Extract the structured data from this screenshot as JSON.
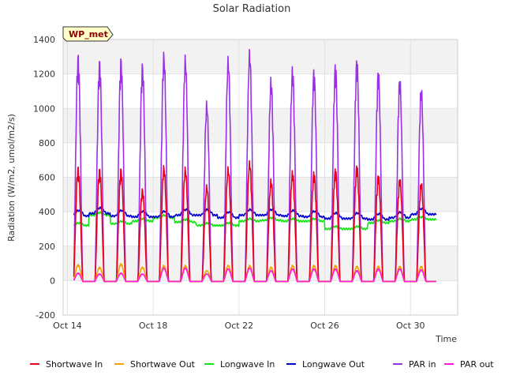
{
  "chart_data": {
    "type": "line",
    "title": "Solar Radiation",
    "station_label": "WP_met",
    "xlabel": "Time",
    "ylabel": "Radiation (W/m2, umol/m2/s)",
    "ylim": [
      -200,
      1400
    ],
    "yticks": [
      -200,
      0,
      200,
      400,
      600,
      800,
      1000,
      1200,
      1400
    ],
    "xlim": [
      13.8,
      32.2
    ],
    "xticks": [
      {
        "day": 14,
        "label": "Oct 14"
      },
      {
        "day": 18,
        "label": "Oct 18"
      },
      {
        "day": 22,
        "label": "Oct 22"
      },
      {
        "day": 26,
        "label": "Oct 26"
      },
      {
        "day": 30,
        "label": "Oct 30"
      }
    ],
    "data_start_day": 14.3,
    "data_end_day": 31.2,
    "legend_position": "bottom",
    "series": [
      {
        "name": "Shortwave In",
        "color": "#e8001a",
        "kind": "solar",
        "daily_peaks": [
          670,
          660,
          660,
          540,
          675,
          665,
          560,
          665,
          700,
          595,
          645,
          640,
          660,
          680,
          625,
          605,
          580
        ]
      },
      {
        "name": "Shortwave Out",
        "color": "#f5a300",
        "kind": "solar",
        "daily_peaks": [
          95,
          80,
          100,
          80,
          90,
          90,
          60,
          90,
          90,
          80,
          90,
          90,
          90,
          85,
          85,
          85,
          85
        ]
      },
      {
        "name": "Longwave In",
        "color": "#14e614",
        "kind": "longwave",
        "daily_levels": [
          320,
          380,
          330,
          345,
          365,
          340,
          320,
          320,
          345,
          350,
          345,
          345,
          300,
          300,
          335,
          345,
          355
        ]
      },
      {
        "name": "Longwave Out",
        "color": "#0000cc",
        "kind": "longwave",
        "daily_levels": [
          375,
          390,
          375,
          370,
          370,
          380,
          380,
          365,
          380,
          380,
          375,
          370,
          360,
          360,
          355,
          365,
          385
        ]
      },
      {
        "name": "PAR in",
        "color": "#9b30e6",
        "kind": "solar",
        "daily_peaks": [
          1330,
          1300,
          1310,
          1275,
          1340,
          1320,
          1050,
          1310,
          1350,
          1190,
          1255,
          1240,
          1275,
          1305,
          1240,
          1195,
          1140
        ]
      },
      {
        "name": "PAR out",
        "color": "#ff1ad9",
        "kind": "solar",
        "daily_peaks": [
          45,
          40,
          45,
          40,
          75,
          75,
          40,
          70,
          75,
          60,
          70,
          70,
          70,
          60,
          70,
          70,
          65
        ]
      }
    ]
  }
}
